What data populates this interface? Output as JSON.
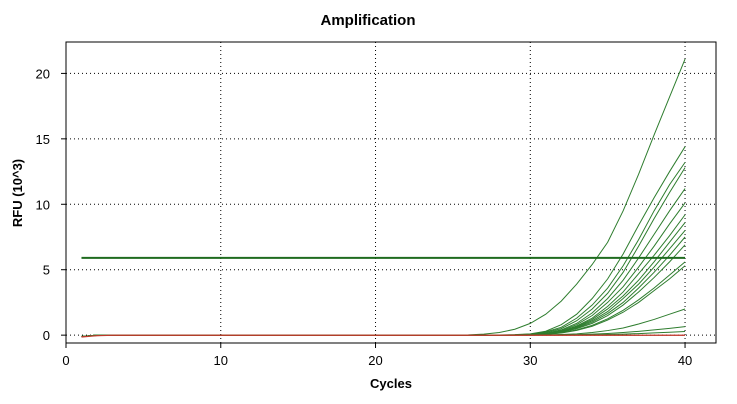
{
  "chart_data": {
    "type": "line",
    "title": "Amplification",
    "xlabel": "Cycles",
    "ylabel": "RFU (10^3)",
    "xlim": [
      0,
      42
    ],
    "ylim": [
      -0.6,
      22.4
    ],
    "xticks": [
      0,
      10,
      20,
      30,
      40
    ],
    "yticks": [
      0,
      5,
      10,
      15,
      20
    ],
    "grid": true,
    "grid_style": "dotted",
    "colors": {
      "amplification": "#2e7d2e",
      "threshold": "#1f6b1f",
      "negative": "#c0392b",
      "grid": "#000000"
    },
    "threshold": 5.9,
    "threshold_x": [
      1,
      40
    ],
    "x": [
      1,
      2,
      3,
      4,
      5,
      6,
      7,
      8,
      9,
      10,
      11,
      12,
      13,
      14,
      15,
      16,
      17,
      18,
      19,
      20,
      21,
      22,
      23,
      24,
      25,
      26,
      27,
      28,
      29,
      30,
      31,
      32,
      33,
      34,
      35,
      36,
      37,
      38,
      39,
      40
    ],
    "series": [
      {
        "values": [
          -0.1,
          0,
          0,
          0,
          0,
          0,
          0,
          0,
          0,
          0,
          0,
          0,
          0,
          0,
          0,
          0,
          0,
          0,
          0,
          0,
          0,
          0,
          0,
          0,
          0,
          0.02,
          0.08,
          0.2,
          0.45,
          0.9,
          1.6,
          2.6,
          3.9,
          5.4,
          7.1,
          9.5,
          12.3,
          15.3,
          18.2,
          21.1
        ]
      },
      {
        "values": [
          -0.1,
          0,
          0,
          0,
          0,
          0,
          0,
          0,
          0,
          0,
          0,
          0,
          0,
          0,
          0,
          0,
          0,
          0,
          0,
          0,
          0,
          0,
          0,
          0,
          0,
          0,
          0,
          0.01,
          0.04,
          0.1,
          0.3,
          0.8,
          1.6,
          2.8,
          4.3,
          6.2,
          8.4,
          10.5,
          12.5,
          14.4
        ]
      },
      {
        "values": [
          -0.1,
          0,
          0,
          0,
          0,
          0,
          0,
          0,
          0,
          0,
          0,
          0,
          0,
          0,
          0,
          0,
          0,
          0,
          0,
          0,
          0,
          0,
          0,
          0,
          0,
          0,
          0,
          0,
          0.02,
          0.08,
          0.25,
          0.6,
          1.3,
          2.3,
          3.6,
          5.3,
          7.3,
          9.5,
          11.5,
          13.2
        ]
      },
      {
        "values": [
          -0.1,
          0,
          0,
          0,
          0,
          0,
          0,
          0,
          0,
          0,
          0,
          0,
          0,
          0,
          0,
          0,
          0,
          0,
          0,
          0,
          0,
          0,
          0,
          0,
          0,
          0,
          0,
          0,
          0.02,
          0.06,
          0.2,
          0.5,
          1.1,
          2.0,
          3.2,
          4.8,
          6.8,
          8.9,
          10.9,
          12.8
        ]
      },
      {
        "values": [
          -0.1,
          0,
          0,
          0,
          0,
          0,
          0,
          0,
          0,
          0,
          0,
          0,
          0,
          0,
          0,
          0,
          0,
          0,
          0,
          0,
          0,
          0,
          0,
          0,
          0,
          0,
          0,
          0,
          0.01,
          0.05,
          0.15,
          0.4,
          0.9,
          1.7,
          2.8,
          4.2,
          5.9,
          7.7,
          9.5,
          11.2
        ]
      },
      {
        "values": [
          -0.1,
          0,
          0,
          0,
          0,
          0,
          0,
          0,
          0,
          0,
          0,
          0,
          0,
          0,
          0,
          0,
          0,
          0,
          0,
          0,
          0,
          0,
          0,
          0,
          0,
          0,
          0,
          0,
          0.01,
          0.04,
          0.13,
          0.35,
          0.8,
          1.5,
          2.5,
          3.7,
          5.2,
          6.8,
          8.5,
          10.1
        ]
      },
      {
        "values": [
          -0.1,
          0,
          0,
          0,
          0,
          0,
          0,
          0,
          0,
          0,
          0,
          0,
          0,
          0,
          0,
          0,
          0,
          0,
          0,
          0,
          0,
          0,
          0,
          0,
          0,
          0,
          0,
          0,
          0.01,
          0.03,
          0.12,
          0.3,
          0.7,
          1.3,
          2.2,
          3.3,
          4.7,
          6.1,
          7.6,
          9.2
        ]
      },
      {
        "values": [
          -0.1,
          0,
          0,
          0,
          0,
          0,
          0,
          0,
          0,
          0,
          0,
          0,
          0,
          0,
          0,
          0,
          0,
          0,
          0,
          0,
          0,
          0,
          0,
          0,
          0,
          0,
          0,
          0,
          0.01,
          0.03,
          0.1,
          0.28,
          0.65,
          1.2,
          2.0,
          3.0,
          4.2,
          5.6,
          7.1,
          8.6
        ]
      },
      {
        "values": [
          -0.1,
          0,
          0,
          0,
          0,
          0,
          0,
          0,
          0,
          0,
          0,
          0,
          0,
          0,
          0,
          0,
          0,
          0,
          0,
          0,
          0,
          0,
          0,
          0,
          0,
          0,
          0,
          0,
          0.01,
          0.03,
          0.1,
          0.26,
          0.6,
          1.1,
          1.8,
          2.8,
          3.9,
          5.2,
          6.6,
          8.0
        ]
      },
      {
        "values": [
          -0.1,
          0,
          0,
          0,
          0,
          0,
          0,
          0,
          0,
          0,
          0,
          0,
          0,
          0,
          0,
          0,
          0,
          0,
          0,
          0,
          0,
          0,
          0,
          0,
          0,
          0,
          0,
          0,
          0.01,
          0.02,
          0.09,
          0.24,
          0.55,
          1.0,
          1.65,
          2.5,
          3.6,
          4.8,
          6.1,
          7.5
        ]
      },
      {
        "values": [
          -0.1,
          0,
          0,
          0,
          0,
          0,
          0,
          0,
          0,
          0,
          0,
          0,
          0,
          0,
          0,
          0,
          0,
          0,
          0,
          0,
          0,
          0,
          0,
          0,
          0,
          0,
          0,
          0,
          0.01,
          0.02,
          0.08,
          0.22,
          0.5,
          0.9,
          1.5,
          2.3,
          3.3,
          4.4,
          5.6,
          6.9
        ]
      },
      {
        "values": [
          -0.1,
          0,
          0,
          0,
          0,
          0,
          0,
          0,
          0,
          0,
          0,
          0,
          0,
          0,
          0,
          0,
          0,
          0,
          0,
          0,
          0,
          0,
          0,
          0,
          0,
          0,
          0,
          0,
          0,
          0.02,
          0.07,
          0.18,
          0.4,
          0.75,
          1.25,
          1.9,
          2.7,
          3.6,
          4.6,
          5.6
        ]
      },
      {
        "values": [
          -0.1,
          0,
          0,
          0,
          0,
          0,
          0,
          0,
          0,
          0,
          0,
          0,
          0,
          0,
          0,
          0,
          0,
          0,
          0,
          0,
          0,
          0,
          0,
          0,
          0,
          0,
          0,
          0,
          0,
          0.02,
          0.06,
          0.16,
          0.36,
          0.68,
          1.15,
          1.75,
          2.5,
          3.4,
          4.3,
          5.3
        ]
      },
      {
        "values": [
          -0.1,
          0,
          0,
          0,
          0,
          0,
          0,
          0,
          0,
          0,
          0,
          0,
          0,
          0,
          0,
          0,
          0,
          0,
          0,
          0,
          0,
          0,
          0,
          0,
          0,
          0,
          0,
          0,
          0,
          0,
          0.02,
          0.05,
          0.1,
          0.2,
          0.35,
          0.55,
          0.85,
          1.2,
          1.6,
          2.0
        ]
      },
      {
        "values": [
          -0.1,
          0,
          0,
          0,
          0,
          0,
          0,
          0,
          0,
          0,
          0,
          0,
          0,
          0,
          0,
          0,
          0,
          0,
          0,
          0,
          0,
          0,
          0,
          0,
          0,
          0,
          0,
          0,
          0,
          0,
          0.01,
          0.02,
          0.04,
          0.08,
          0.13,
          0.2,
          0.29,
          0.4,
          0.52,
          0.65
        ]
      },
      {
        "values": [
          -0.1,
          0,
          0,
          0,
          0,
          0,
          0,
          0,
          0,
          0,
          0,
          0,
          0,
          0,
          0,
          0,
          0,
          0,
          0,
          0,
          0,
          0,
          0,
          0,
          0,
          0,
          0,
          0,
          0,
          0,
          0,
          0,
          0.01,
          0.03,
          0.05,
          0.08,
          0.12,
          0.17,
          0.22,
          0.28
        ]
      },
      {
        "negative": true,
        "values": [
          -0.15,
          -0.05,
          -0.02,
          -0.02,
          -0.02,
          -0.02,
          -0.02,
          -0.02,
          -0.02,
          -0.02,
          -0.02,
          -0.02,
          -0.02,
          -0.02,
          -0.02,
          -0.02,
          -0.02,
          -0.02,
          -0.02,
          -0.02,
          -0.02,
          -0.02,
          -0.02,
          -0.02,
          -0.02,
          -0.02,
          -0.02,
          -0.02,
          -0.02,
          -0.02,
          -0.02,
          -0.02,
          -0.02,
          -0.02,
          -0.02,
          -0.02,
          -0.02,
          -0.02,
          -0.02,
          -0.02
        ]
      },
      {
        "negative": true,
        "values": [
          -0.12,
          -0.04,
          0,
          0,
          0,
          0,
          0,
          0,
          0,
          0,
          0,
          0,
          0,
          0,
          0,
          0,
          0,
          0,
          0,
          0,
          0,
          0,
          0,
          0,
          0,
          0,
          0,
          0,
          0,
          0,
          0,
          0,
          0,
          0,
          0,
          0,
          0,
          0,
          0,
          0
        ]
      }
    ]
  }
}
